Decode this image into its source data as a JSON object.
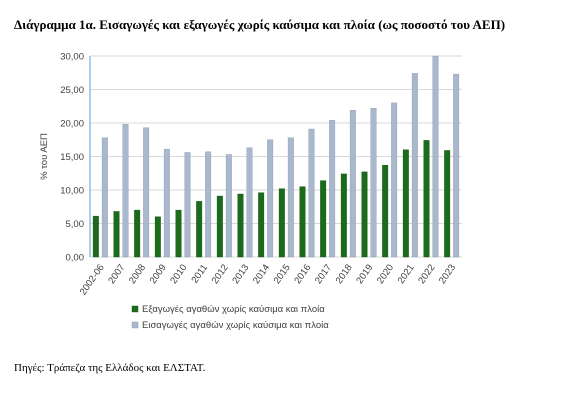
{
  "title": "Διάγραμμα 1α. Εισαγωγές και εξαγωγές χωρίς καύσιμα και πλοία (ως ποσοστό του ΑΕΠ)",
  "source": "Πηγές: Τράπεζα της Ελλάδος και ΕΛΣΤΑΤ.",
  "colors": {
    "exports": "#1a6b1a",
    "imports": "#a9b8cc",
    "grid": "#d9d9d9",
    "axis": "#5b9bd5"
  },
  "chart_data": {
    "type": "bar",
    "ylabel": "% του ΑΕΠ",
    "ylim": [
      0,
      30
    ],
    "yticks": [
      "0,00",
      "5,00",
      "10,00",
      "15,00",
      "20,00",
      "25,00",
      "30,00"
    ],
    "grid": true,
    "legend_position": "bottom",
    "categories": [
      "2002-06",
      "2007",
      "2008",
      "2009",
      "2010",
      "2011",
      "2012",
      "2013",
      "2014",
      "2015",
      "2016",
      "2017",
      "2018",
      "2019",
      "2020",
      "2021",
      "2022",
      "2023"
    ],
    "series": [
      {
        "name": "Εξαγωγές αγαθών χωρίς καύσιμα και πλοία",
        "values": [
          6.1,
          6.8,
          7.0,
          6.0,
          7.0,
          8.3,
          9.1,
          9.4,
          9.6,
          10.2,
          10.5,
          11.4,
          12.4,
          12.7,
          13.7,
          16.0,
          17.4,
          15.9
        ]
      },
      {
        "name": "Εισαγωγές αγαθών χωρίς καύσιμα και πλοία",
        "values": [
          17.8,
          19.8,
          19.3,
          16.1,
          15.6,
          15.7,
          15.3,
          16.3,
          17.5,
          17.8,
          19.1,
          20.4,
          21.9,
          22.2,
          23.0,
          27.4,
          30.0,
          27.3
        ]
      }
    ]
  }
}
